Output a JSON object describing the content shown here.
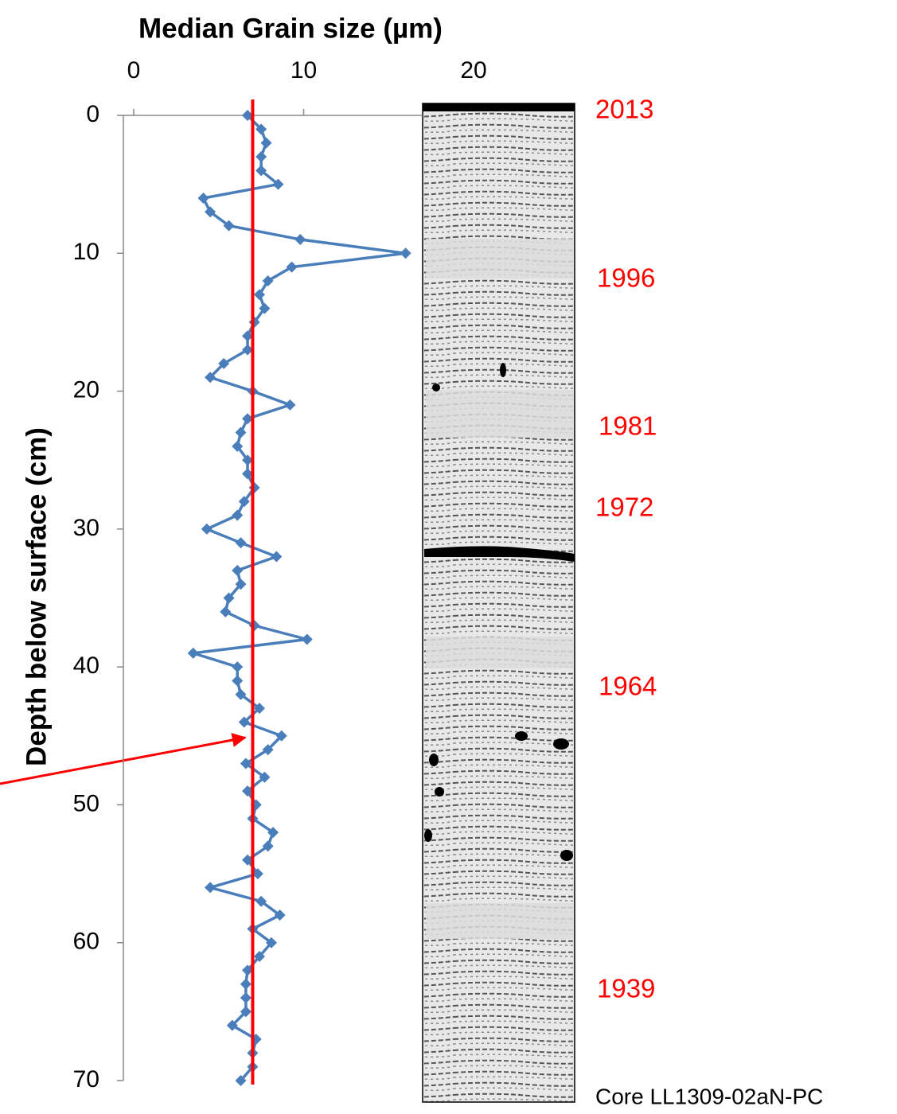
{
  "chart_data": {
    "type": "line",
    "orientation": "horizontal",
    "title": "Median Grain size (µm)",
    "x_label": "Depth below surface (cm)",
    "x": [
      0,
      1,
      2,
      3,
      4,
      5,
      6,
      7,
      8,
      9,
      10,
      11,
      12,
      13,
      14,
      15,
      16,
      17,
      18,
      19,
      20,
      21,
      22,
      23,
      24,
      25,
      26,
      27,
      28,
      29,
      30,
      31,
      32,
      33,
      34,
      35,
      36,
      37,
      38,
      39,
      40,
      41,
      42,
      43,
      44,
      45,
      46,
      47,
      48,
      49,
      50,
      51,
      52,
      53,
      54,
      55,
      56,
      57,
      58,
      59,
      60,
      61,
      62,
      63,
      64,
      65,
      66,
      67,
      68,
      69,
      70
    ],
    "xlim": [
      0,
      70
    ],
    "xticks": [
      0,
      10,
      20,
      30,
      40,
      50,
      60,
      70
    ],
    "ylim": [
      0,
      25
    ],
    "yticks": [
      0,
      10,
      20
    ],
    "series": [
      {
        "color": "#4a7ebb",
        "values": [
          6.7,
          7.5,
          7.8,
          7.5,
          7.5,
          8.5,
          4.1,
          4.5,
          5.6,
          9.8,
          16.0,
          9.3,
          7.9,
          7.4,
          7.7,
          7.1,
          6.7,
          6.7,
          5.3,
          4.5,
          7.0,
          9.2,
          6.7,
          6.3,
          6.1,
          6.7,
          6.7,
          7.1,
          6.5,
          6.1,
          4.3,
          6.3,
          8.4,
          6.1,
          6.3,
          5.6,
          5.4,
          7.1,
          10.2,
          3.5,
          6.1,
          6.1,
          6.3,
          7.4,
          6.5,
          8.7,
          7.9,
          6.6,
          7.7,
          6.7,
          7.2,
          7.0,
          8.2,
          7.9,
          6.7,
          7.3,
          4.5,
          7.5,
          8.6,
          7.0,
          8.1,
          7.4,
          6.7,
          6.6,
          6.6,
          6.6,
          5.8,
          7.2,
          7.0,
          7.0,
          6.3
        ]
      }
    ],
    "reference_line": {
      "value": 7.0,
      "color": "#ff0000"
    },
    "annotations": [
      "2013",
      "1996",
      "1981",
      "1972",
      "1964",
      "1939"
    ],
    "annotation_color": "#ff0000",
    "core_label": "Core LL1309-02aN-PC"
  }
}
